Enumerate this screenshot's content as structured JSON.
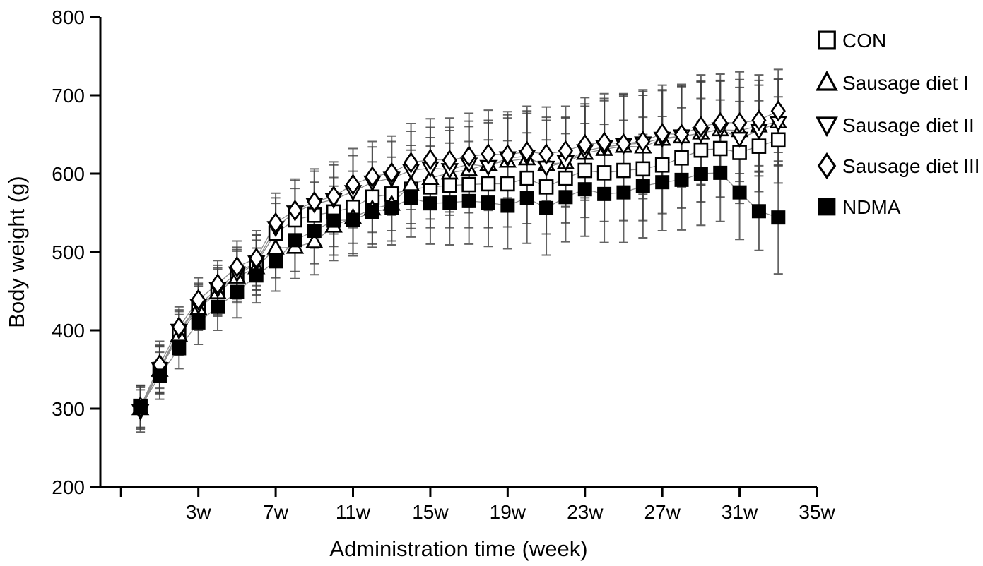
{
  "figure": {
    "background": "#ffffff",
    "axis_color": "#000000",
    "errorbar_color": "#3d3d3d",
    "line_color": "#8c8c8c",
    "marker_stroke": "#000000"
  },
  "chart_data": {
    "type": "line",
    "title": "",
    "xlabel": "Administration time (week)",
    "ylabel": "Body weight (g)",
    "grid": false,
    "legend_position": "outside-top-right",
    "xlim": [
      -2.07,
      35
    ],
    "ylim": [
      200,
      800
    ],
    "y_ticks": [
      200,
      300,
      400,
      500,
      600,
      700,
      800
    ],
    "x_ticks": [
      {
        "w": -1,
        "label": ""
      },
      {
        "w": 3,
        "label": "3w"
      },
      {
        "w": 7,
        "label": "7w"
      },
      {
        "w": 11,
        "label": "11w"
      },
      {
        "w": 15,
        "label": "15w"
      },
      {
        "w": 19,
        "label": "19w"
      },
      {
        "w": 23,
        "label": "23w"
      },
      {
        "w": 27,
        "label": "27w"
      },
      {
        "w": 31,
        "label": "31w"
      },
      {
        "w": 35,
        "label": "35w"
      }
    ],
    "x": [
      0,
      1,
      2,
      3,
      4,
      5,
      6,
      7,
      8,
      9,
      10,
      11,
      12,
      13,
      14,
      15,
      16,
      17,
      18,
      19,
      20,
      21,
      22,
      23,
      24,
      25,
      26,
      27,
      28,
      29,
      30,
      31,
      32,
      33
    ],
    "series": [
      {
        "name": "CON",
        "marker": "open-square",
        "values": [
          303,
          350,
          398,
          430,
          450,
          470,
          486,
          524,
          541,
          547,
          551,
          557,
          570,
          574,
          580,
          583,
          585,
          586,
          587,
          587,
          594,
          583,
          594,
          604,
          601,
          604,
          606,
          611,
          620,
          630,
          632,
          627,
          635,
          643
        ],
        "err": [
          27,
          30,
          26,
          28,
          30,
          33,
          35,
          38,
          40,
          42,
          44,
          46,
          45,
          47,
          50,
          52,
          54,
          55,
          56,
          55,
          58,
          60,
          57,
          60,
          62,
          64,
          66,
          62,
          64,
          66,
          62,
          65,
          58,
          55
        ]
      },
      {
        "name": "Sausage diet I",
        "marker": "open-triangle-up",
        "values": [
          300,
          349,
          394,
          428,
          448,
          468,
          480,
          505,
          506,
          513,
          533,
          544,
          555,
          561,
          586,
          594,
          601,
          605,
          612,
          616,
          619,
          612,
          614,
          626,
          631,
          635,
          634,
          644,
          647,
          652,
          656,
          655,
          661,
          666
        ],
        "err": [
          27,
          30,
          26,
          28,
          30,
          33,
          35,
          38,
          40,
          42,
          44,
          46,
          45,
          47,
          50,
          52,
          54,
          55,
          56,
          55,
          58,
          60,
          57,
          60,
          62,
          64,
          66,
          62,
          64,
          66,
          62,
          65,
          58,
          55
        ]
      },
      {
        "name": "Sausage diet II",
        "marker": "open-triangle-down",
        "values": [
          297,
          351,
          400,
          432,
          453,
          473,
          487,
          531,
          551,
          561,
          567,
          577,
          589,
          594,
          604,
          607,
          605,
          612,
          609,
          620,
          622,
          608,
          615,
          629,
          634,
          637,
          639,
          645,
          648,
          651,
          657,
          645,
          655,
          665
        ],
        "err": [
          27,
          30,
          26,
          28,
          30,
          33,
          35,
          38,
          40,
          42,
          44,
          46,
          45,
          47,
          50,
          52,
          54,
          55,
          56,
          55,
          58,
          60,
          57,
          60,
          62,
          64,
          66,
          62,
          64,
          66,
          62,
          65,
          58,
          55
        ]
      },
      {
        "name": "Sausage diet III",
        "marker": "open-diamond",
        "values": [
          302,
          356,
          404,
          439,
          459,
          481,
          492,
          537,
          553,
          564,
          571,
          586,
          596,
          601,
          614,
          618,
          617,
          622,
          625,
          624,
          628,
          625,
          629,
          637,
          640,
          638,
          641,
          651,
          650,
          660,
          665,
          665,
          668,
          680
        ],
        "err": [
          27,
          30,
          26,
          28,
          30,
          33,
          35,
          38,
          40,
          42,
          44,
          46,
          45,
          47,
          50,
          52,
          54,
          55,
          56,
          55,
          58,
          60,
          57,
          60,
          62,
          64,
          66,
          62,
          64,
          66,
          62,
          65,
          58,
          53
        ]
      },
      {
        "name": "NDMA",
        "marker": "filled-square",
        "values": [
          302,
          342,
          377,
          410,
          430,
          449,
          470,
          488,
          515,
          527,
          540,
          541,
          551,
          556,
          569,
          562,
          563,
          565,
          563,
          559,
          569,
          556,
          570,
          580,
          574,
          576,
          584,
          589,
          592,
          600,
          601,
          576,
          552,
          544
        ],
        "err": [
          27,
          30,
          26,
          28,
          30,
          33,
          35,
          38,
          40,
          42,
          44,
          46,
          45,
          47,
          50,
          52,
          54,
          55,
          56,
          55,
          58,
          60,
          57,
          60,
          62,
          64,
          66,
          62,
          64,
          66,
          62,
          60,
          50,
          72
        ]
      }
    ]
  }
}
